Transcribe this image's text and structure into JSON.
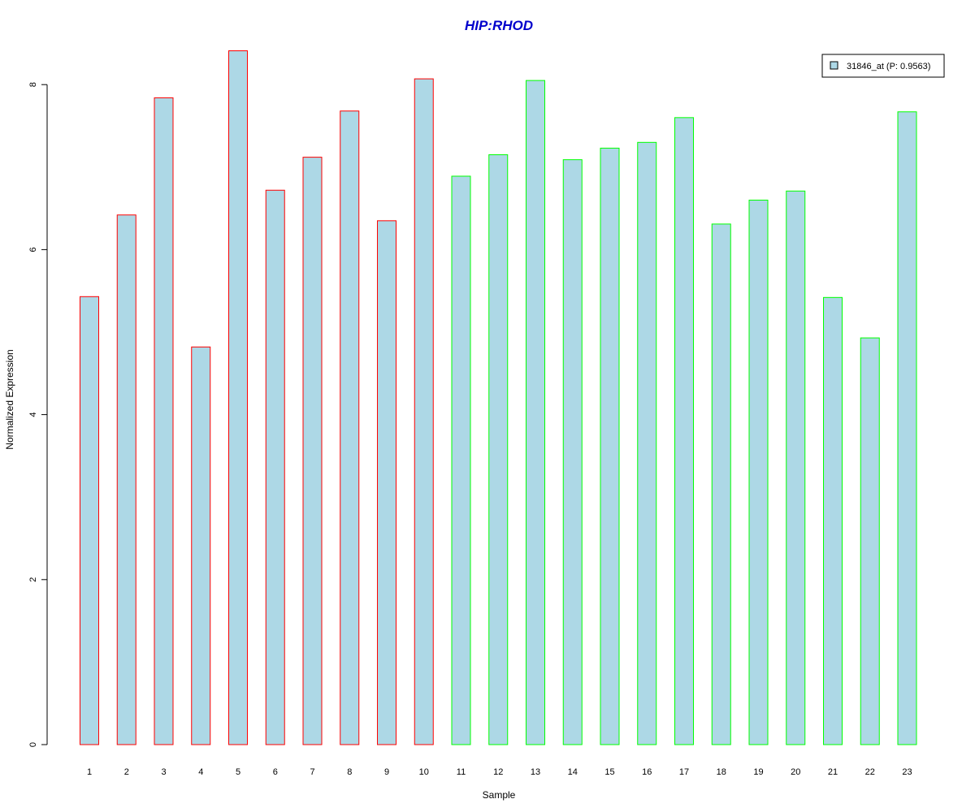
{
  "chart_data": {
    "type": "bar",
    "title": "HIP:RHOD",
    "title_color": "#0000CC",
    "xlabel": "Sample",
    "ylabel": "Normalized Expression",
    "ylim": [
      0,
      8.4
    ],
    "yticks": [
      0,
      2,
      4,
      6,
      8
    ],
    "grid": false,
    "legend_position": "top-right",
    "bar_fill": "#ADD8E6",
    "group_colors": [
      "#FF0000",
      "#00FF00"
    ],
    "categories": [
      "1",
      "2",
      "3",
      "4",
      "5",
      "6",
      "7",
      "8",
      "9",
      "10",
      "11",
      "12",
      "13",
      "14",
      "15",
      "16",
      "17",
      "18",
      "19",
      "20",
      "21",
      "22",
      "23"
    ],
    "series": [
      {
        "name": "31846_at (P: 0.9563)",
        "values": [
          5.43,
          6.42,
          7.84,
          4.82,
          8.41,
          6.72,
          7.12,
          7.68,
          6.35,
          8.07,
          6.89,
          7.15,
          8.05,
          7.09,
          7.23,
          7.3,
          7.6,
          6.31,
          6.6,
          6.71,
          5.42,
          4.93,
          7.67
        ],
        "groups": [
          0,
          0,
          0,
          0,
          0,
          0,
          0,
          0,
          0,
          0,
          1,
          1,
          1,
          1,
          1,
          1,
          1,
          1,
          1,
          1,
          1,
          1,
          1
        ]
      }
    ]
  }
}
